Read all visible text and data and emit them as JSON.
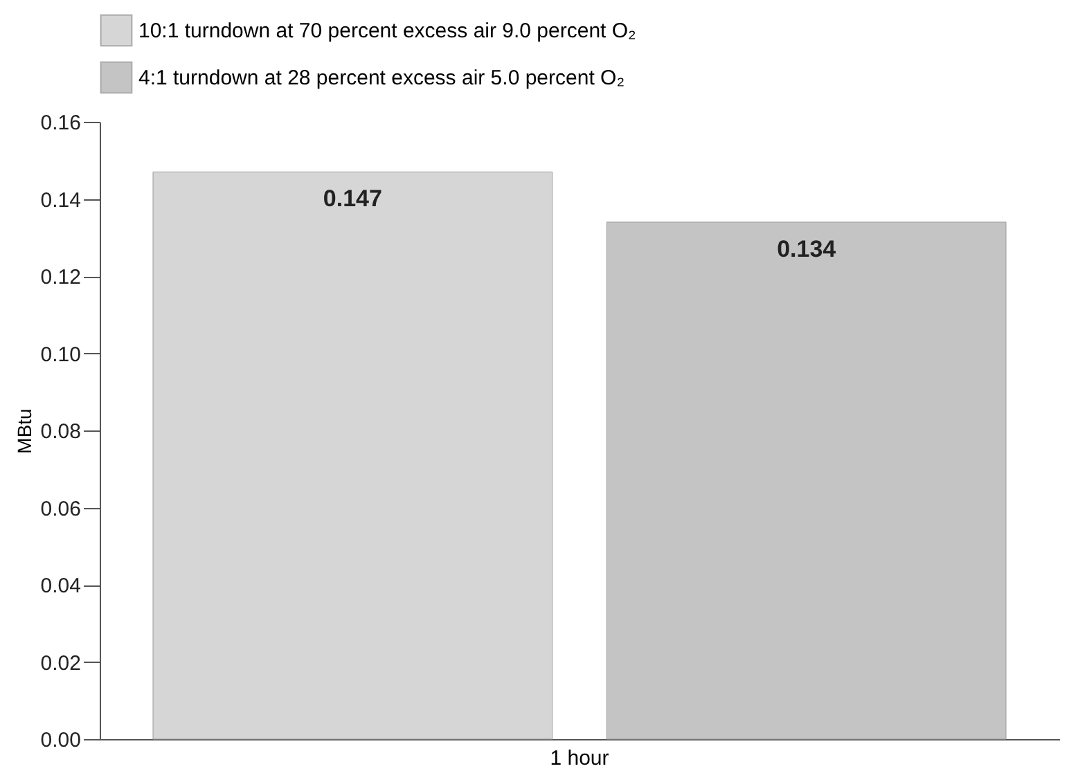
{
  "chart_data": {
    "type": "bar",
    "ylabel": "MBtu",
    "categories": [
      "1 hour"
    ],
    "series": [
      {
        "name": "10:1 turndown at 70 percent excess air 9.0 percent O₂",
        "color": "#d6d6d6",
        "values": [
          0.147
        ]
      },
      {
        "name": "4:1 turndown at 28 percent excess air 5.0 percent O₂",
        "color": "#c4c4c4",
        "values": [
          0.134
        ]
      }
    ],
    "ylim": [
      0,
      0.16
    ],
    "yticks": [
      {
        "value": 0,
        "label": "0.00"
      },
      {
        "value": 0.02,
        "label": "0.02"
      },
      {
        "value": 0.04,
        "label": "0.04"
      },
      {
        "value": 0.06,
        "label": "0.06"
      },
      {
        "value": 0.08,
        "label": "0.08"
      },
      {
        "value": 0.1,
        "label": "0.10"
      },
      {
        "value": 0.12,
        "label": "0.12"
      },
      {
        "value": 0.14,
        "label": "0.14"
      },
      {
        "value": 0.16,
        "label": "0.16"
      }
    ],
    "grid": false,
    "legend": "top",
    "data_labels": true
  }
}
